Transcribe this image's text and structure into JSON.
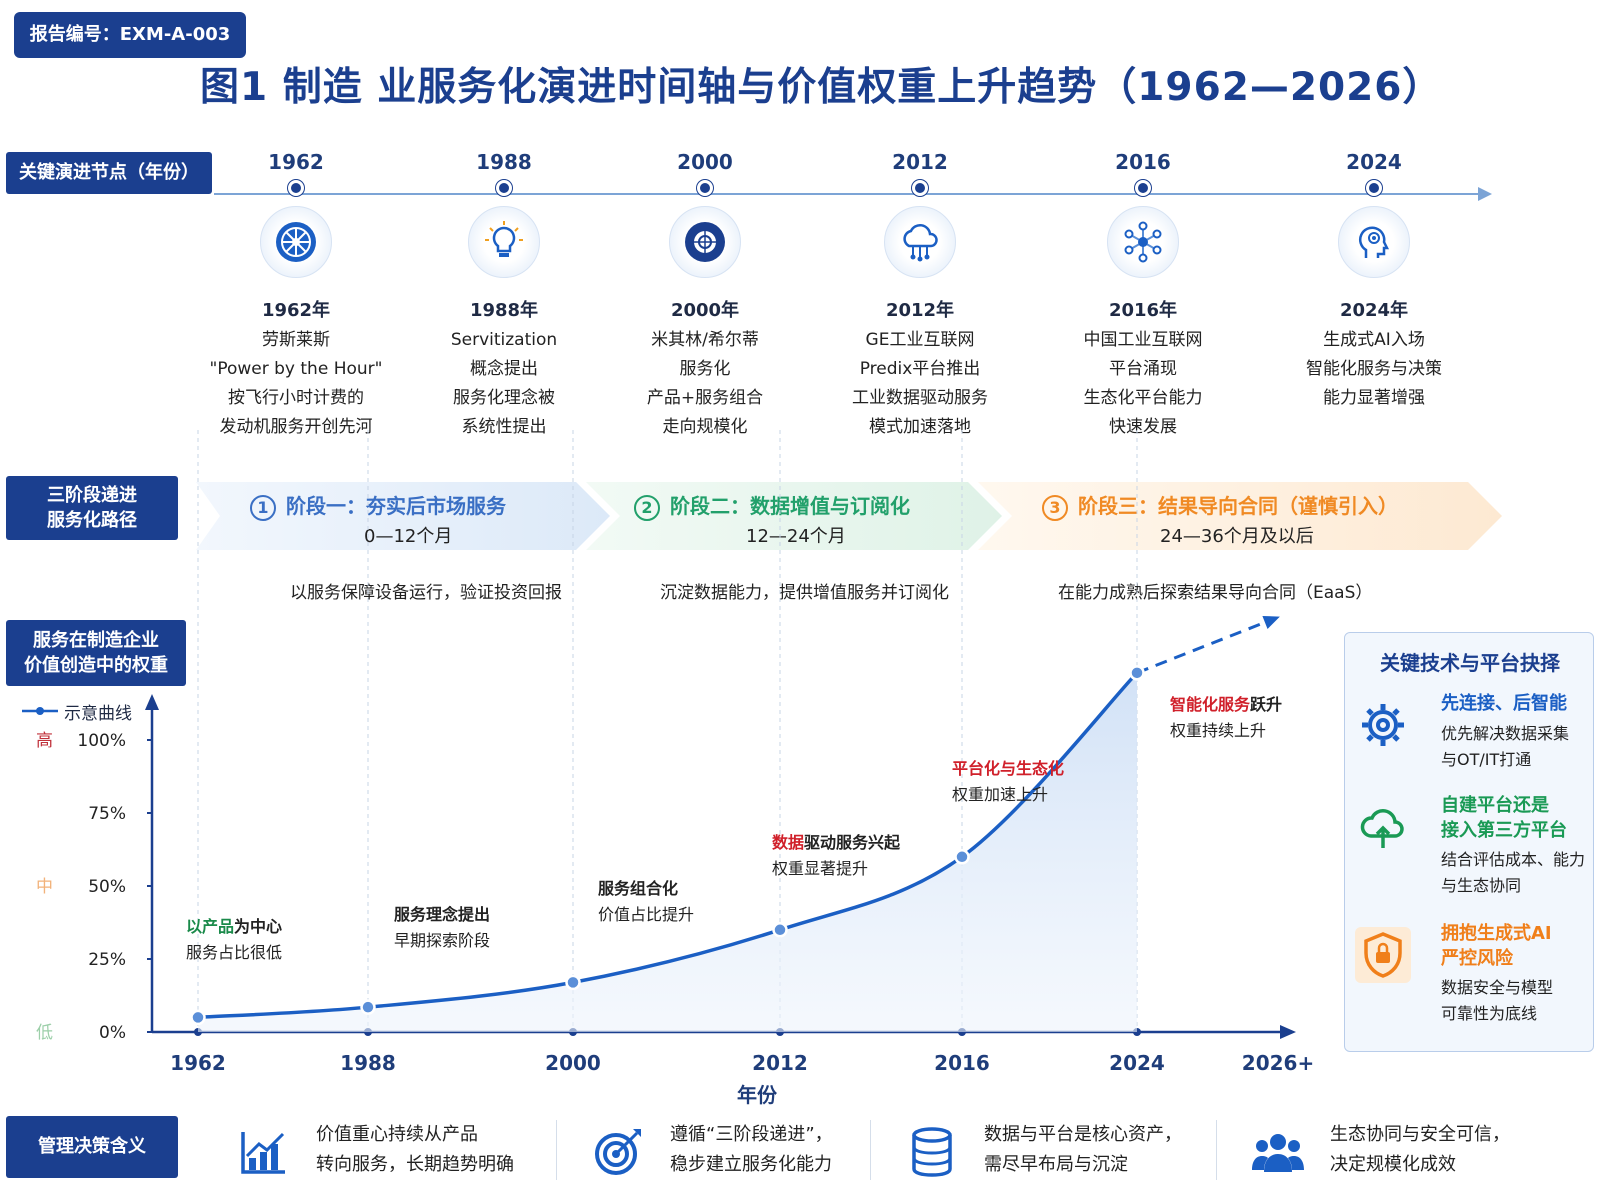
{
  "report_tag": "报告编号：EXM-A-003",
  "title": "图1  制造 业服务化演进时间轴与价值权重上升趋势（1962—2026）",
  "timeline": {
    "label": "关键演进节点（年份）",
    "nodes": [
      {
        "year": "1962",
        "title": "1962年",
        "desc": [
          "劳斯莱斯",
          "\"Power by the Hour\"",
          "按飞行小时计费的",
          "发动机服务开创先河"
        ],
        "icon": "jet-engine-icon"
      },
      {
        "year": "1988",
        "title": "1988年",
        "desc": [
          "Servitization",
          "概念提出",
          "服务化理念被",
          "系统性提出"
        ],
        "icon": "lightbulb-icon"
      },
      {
        "year": "2000",
        "title": "2000年",
        "desc": [
          "米其林/希尔蒂",
          "服务化",
          "产品+服务组合",
          "走向规模化"
        ],
        "icon": "tire-icon"
      },
      {
        "year": "2012",
        "title": "2012年",
        "desc": [
          "GE工业互联网",
          "Predix平台推出",
          "工业数据驱动服务",
          "模式加速落地"
        ],
        "icon": "cloud-network-icon"
      },
      {
        "year": "2016",
        "title": "2016年",
        "desc": [
          "中国工业互联网",
          "平台涌现",
          "生态化平台能力",
          "快速发展"
        ],
        "icon": "ecosystem-network-icon"
      },
      {
        "year": "2024",
        "title": "2024年",
        "desc": [
          "生成式AI入场",
          "智能化服务与决策",
          "能力显著增强"
        ],
        "icon": "ai-head-icon"
      }
    ]
  },
  "stages": {
    "label": "三阶段递进\n服务化路径",
    "items": [
      {
        "num": "1",
        "title": "阶段一：夯实后市场服务",
        "duration": "0—12个月",
        "desc": "以服务保障设备运行，验证投资回报",
        "color": "#3a6fc4"
      },
      {
        "num": "2",
        "title": "阶段二：数据增值与订阅化",
        "duration": "12—24个月",
        "desc": "沉淀数据能力，提供增值服务并订阅化",
        "color": "#22a06b"
      },
      {
        "num": "3",
        "title": "阶段三：结果导向合同（谨慎引入）",
        "duration": "24—36个月及以后",
        "desc": "在能力成熟后探索结果导向合同（EaaS）",
        "color": "#f08a24"
      }
    ]
  },
  "chart_section_label": "服务在制造企业\n价值创造中的权重",
  "chart_data": {
    "type": "line",
    "legend": "示意曲线",
    "legend_position": "top-left",
    "xlabel": "年份",
    "x_ticks": [
      "1962",
      "1988",
      "2000",
      "2012",
      "2016",
      "2024",
      "2026+"
    ],
    "y_ticks": [
      "0%",
      "25%",
      "50%",
      "75%",
      "100%"
    ],
    "y_level_labels": {
      "high": "高",
      "mid": "中",
      "low": "低"
    },
    "ylim": [
      0,
      100
    ],
    "series": [
      {
        "name": "示意曲线",
        "x": [
          "1962",
          "1988",
          "2000",
          "2012",
          "2016",
          "2024"
        ],
        "values": [
          5,
          8.5,
          17,
          35,
          60,
          123
        ]
      }
    ],
    "projection": {
      "from": "2024",
      "to": "2026+",
      "from_value": 123,
      "to_value": 142,
      "style": "dashed"
    },
    "annotations": [
      {
        "highlight": "以产品",
        "highlight_color": "#1a8a4a",
        "rest": "为中心",
        "line2": "服务占比很低"
      },
      {
        "highlight": "",
        "highlight_color": "#222222",
        "rest": "服务理念提出",
        "line2": "早期探索阶段"
      },
      {
        "highlight": "",
        "highlight_color": "#222222",
        "rest": "服务组合化",
        "line2": "价值占比提升"
      },
      {
        "highlight": "数据",
        "highlight_color": "#d0202a",
        "rest": "驱动服务兴起",
        "line2": "权重显著提升"
      },
      {
        "highlight": "平台化与生态化",
        "highlight_color": "#d0202a",
        "rest": "",
        "line2": "权重加速上升"
      },
      {
        "highlight": "智能化服务",
        "highlight_color": "#d0202a",
        "rest": "跃升",
        "line2": "权重持续上升"
      }
    ]
  },
  "tech_panel": {
    "title": "关键技术与平台抉择",
    "items": [
      {
        "icon": "gear-icon",
        "title": "先连接、后智能",
        "desc": "优先解决数据采集\n与OT/IT打通",
        "color": "#1b5fc4"
      },
      {
        "icon": "cloud-upload-icon",
        "title": "自建平台还是\n接入第三方平台",
        "desc": "结合评估成本、能力\n与生态协同",
        "color": "#1a9a55"
      },
      {
        "icon": "shield-lock-icon",
        "title": "拥抱生成式AI\n严控风险",
        "desc": "数据安全与模型\n可靠性为底线",
        "color": "#f07f1a"
      }
    ]
  },
  "management": {
    "label": "管理决策含义",
    "items": [
      {
        "icon": "growth-chart-icon",
        "text": "价值重心持续从产品\n转向服务，长期趋势明确"
      },
      {
        "icon": "target-icon",
        "text": "遵循“三阶段递进”，\n稳步建立服务化能力"
      },
      {
        "icon": "database-icon",
        "text": "数据与平台是核心资产，\n需尽早布局与沉淀"
      },
      {
        "icon": "people-icon",
        "text": "生态协同与安全可信，\n决定规模化成效"
      }
    ]
  }
}
